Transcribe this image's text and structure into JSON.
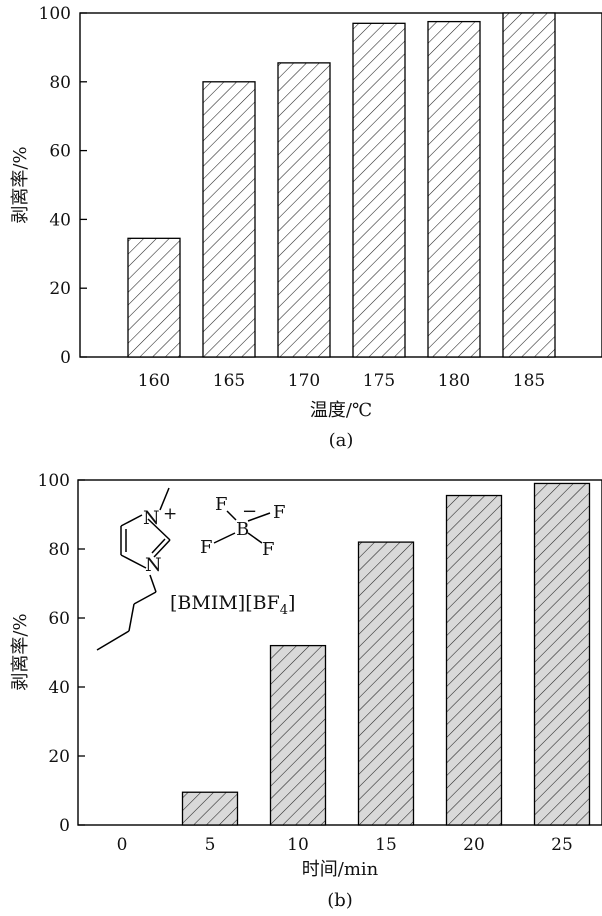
{
  "chart_data": [
    {
      "type": "bar",
      "panel_label": "(a)",
      "categories": [
        "160",
        "165",
        "170",
        "175",
        "180",
        "185"
      ],
      "values": [
        34.5,
        80,
        85.5,
        97,
        97.5,
        100
      ],
      "xlabel": "温度/℃",
      "ylabel": "剥离率/%",
      "ylim": [
        0,
        100
      ],
      "yticks": [
        "0",
        "20",
        "40",
        "60",
        "80",
        "100"
      ],
      "bar_fill": "#ffffff",
      "hatch": "diagonal",
      "grid": false
    },
    {
      "type": "bar",
      "panel_label": "(b)",
      "categories": [
        "0",
        "5",
        "10",
        "15",
        "20",
        "25"
      ],
      "values": [
        0,
        9.5,
        52,
        82,
        95.5,
        99
      ],
      "xlabel": "时间/min",
      "ylabel": "剥离率/%",
      "ylim": [
        0,
        100
      ],
      "yticks": [
        "0",
        "20",
        "40",
        "60",
        "80",
        "100"
      ],
      "bar_fill": "#d9d9d9",
      "hatch": "diagonal",
      "grid": false,
      "annotation": {
        "cation_label": "[BMIM][BF",
        "cation_label_sub": "4",
        "cation_label_tail": "]",
        "atoms": {
          "n_top": "N",
          "plus": "+",
          "n_bottom": "N",
          "boron": "B",
          "minus": "−",
          "f1": "F",
          "f2": "F",
          "f3": "F",
          "f4": "F"
        }
      }
    }
  ]
}
